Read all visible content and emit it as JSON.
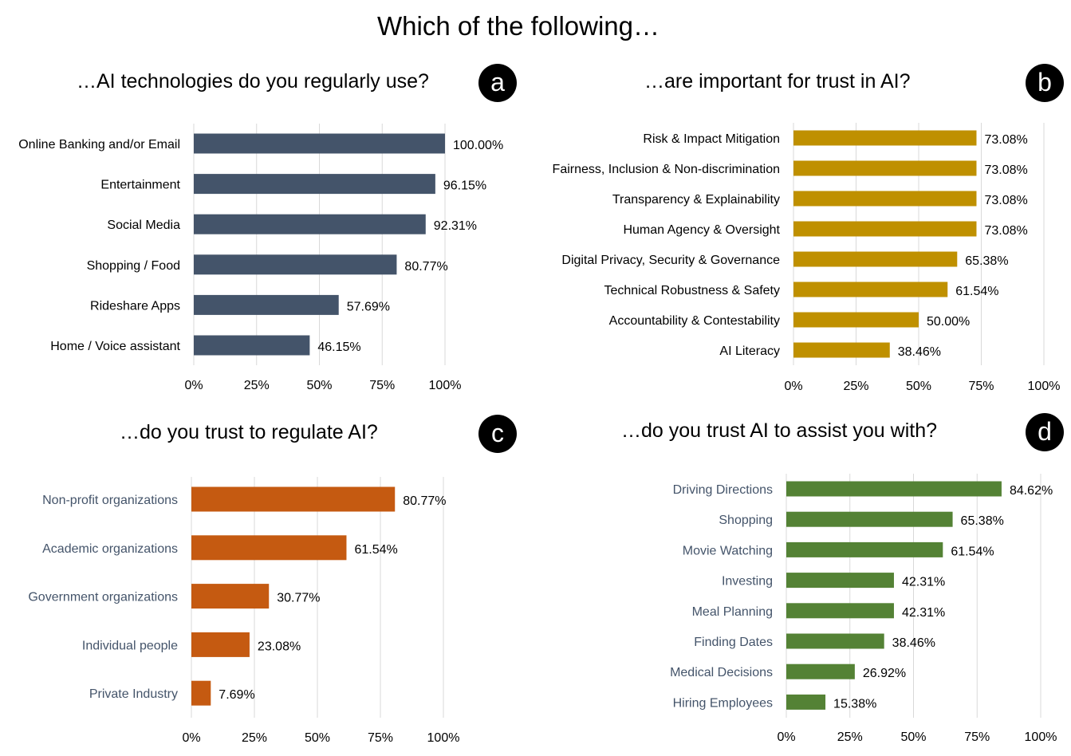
{
  "title": "Which of the following…",
  "panels": [
    {
      "letter": "a",
      "title": "…AI technologies do you regularly use?",
      "color": "#44546a",
      "label_color": "#000000",
      "chart_data": {
        "type": "bar",
        "orientation": "horizontal",
        "categories": [
          "Online Banking and/or Email",
          "Entertainment",
          "Social Media",
          "Shopping / Food",
          "Rideshare Apps",
          "Home / Voice assistant"
        ],
        "values": [
          100.0,
          96.15,
          92.31,
          80.77,
          57.69,
          46.15
        ],
        "value_labels": [
          "100.00%",
          "96.15%",
          "92.31%",
          "80.77%",
          "57.69%",
          "46.15%"
        ],
        "xlim": [
          0,
          100
        ],
        "xticks": [
          "0%",
          "25%",
          "50%",
          "75%",
          "100%"
        ],
        "grid": true
      }
    },
    {
      "letter": "b",
      "title": "…are important for trust in AI?",
      "color": "#bf9000",
      "label_color": "#000000",
      "chart_data": {
        "type": "bar",
        "orientation": "horizontal",
        "categories": [
          "Risk & Impact Mitigation",
          "Fairness, Inclusion & Non-discrimination",
          "Transparency & Explainability",
          "Human Agency & Oversight",
          "Digital Privacy, Security & Governance",
          "Technical Robustness & Safety",
          "Accountability & Contestability",
          "AI Literacy"
        ],
        "values": [
          73.08,
          73.08,
          73.08,
          73.08,
          65.38,
          61.54,
          50.0,
          38.46
        ],
        "value_labels": [
          "73.08%",
          "73.08%",
          "73.08%",
          "73.08%",
          "65.38%",
          "61.54%",
          "50.00%",
          "38.46%"
        ],
        "xlim": [
          0,
          100
        ],
        "xticks": [
          "0%",
          "25%",
          "50%",
          "75%",
          "100%"
        ],
        "grid": true
      }
    },
    {
      "letter": "c",
      "title": "…do you trust to regulate AI?",
      "color": "#c55a11",
      "label_color": "#44546a",
      "chart_data": {
        "type": "bar",
        "orientation": "horizontal",
        "categories": [
          "Non-profit organizations",
          "Academic organizations",
          "Government organizations",
          "Individual people",
          "Private Industry"
        ],
        "values": [
          80.77,
          61.54,
          30.77,
          23.08,
          7.69
        ],
        "value_labels": [
          "80.77%",
          "61.54%",
          "30.77%",
          "23.08%",
          "7.69%"
        ],
        "xlim": [
          0,
          100
        ],
        "xticks": [
          "0%",
          "25%",
          "50%",
          "75%",
          "100%"
        ],
        "grid": true
      }
    },
    {
      "letter": "d",
      "title": "…do you trust AI to assist you with?",
      "color": "#548235",
      "label_color": "#44546a",
      "chart_data": {
        "type": "bar",
        "orientation": "horizontal",
        "categories": [
          "Driving Directions",
          "Shopping",
          "Movie Watching",
          "Investing",
          "Meal Planning",
          "Finding Dates",
          "Medical Decisions",
          "Hiring Employees"
        ],
        "values": [
          84.62,
          65.38,
          61.54,
          42.31,
          42.31,
          38.46,
          26.92,
          15.38
        ],
        "value_labels": [
          "84.62%",
          "65.38%",
          "61.54%",
          "42.31%",
          "42.31%",
          "38.46%",
          "26.92%",
          "15.38%"
        ],
        "xlim": [
          0,
          100
        ],
        "xticks": [
          "0%",
          "25%",
          "50%",
          "75%",
          "100%"
        ],
        "grid": true
      }
    }
  ]
}
